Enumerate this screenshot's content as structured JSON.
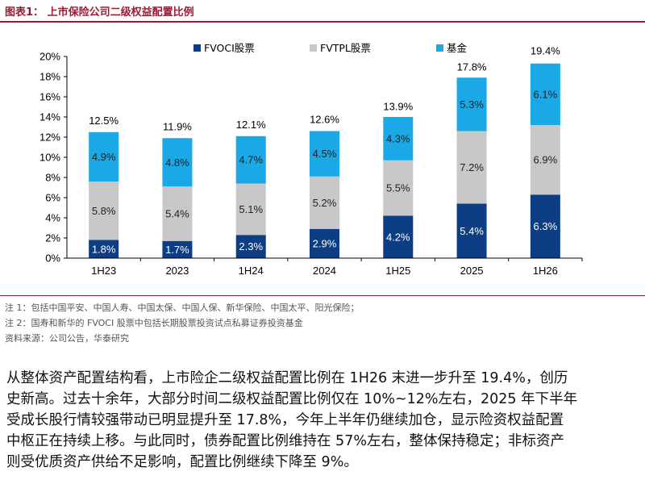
{
  "figure": {
    "title": "图表1：  上市保险公司二级权益配置比例"
  },
  "chart_data": {
    "type": "bar",
    "stacked": true,
    "categories": [
      "1H23",
      "2023",
      "1H24",
      "2024",
      "1H25",
      "2025",
      "1H26"
    ],
    "series": [
      {
        "name": "FVOCI股票",
        "color": "#0d3d82",
        "values": [
          1.8,
          1.7,
          2.3,
          2.9,
          4.2,
          5.4,
          6.3
        ],
        "labels": [
          "1.8%",
          "1.7%",
          "2.3%",
          "2.9%",
          "4.2%",
          "5.4%",
          "6.3%"
        ]
      },
      {
        "name": "FVTPL股票",
        "color": "#c8c8c8",
        "values": [
          5.8,
          5.4,
          5.1,
          5.2,
          5.5,
          7.2,
          6.9
        ],
        "labels": [
          "5.8%",
          "5.4%",
          "5.1%",
          "5.2%",
          "5.5%",
          "7.2%",
          "6.9%"
        ]
      },
      {
        "name": "基金",
        "color": "#1aa9e6",
        "values": [
          4.9,
          4.8,
          4.7,
          4.5,
          4.3,
          5.3,
          6.1
        ],
        "labels": [
          "4.9%",
          "4.8%",
          "4.7%",
          "4.5%",
          "4.3%",
          "5.3%",
          "6.1%"
        ]
      }
    ],
    "totals": [
      12.5,
      11.9,
      12.1,
      12.6,
      13.9,
      17.8,
      19.4
    ],
    "total_labels": [
      "12.5%",
      "11.9%",
      "12.1%",
      "12.6%",
      "13.9%",
      "17.8%",
      "19.4%"
    ],
    "ylim": [
      0,
      20
    ],
    "yticks": [
      0,
      2,
      4,
      6,
      8,
      10,
      12,
      14,
      16,
      18,
      20
    ],
    "ytick_labels": [
      "0%",
      "2%",
      "4%",
      "6%",
      "8%",
      "10%",
      "12%",
      "14%",
      "16%",
      "18%",
      "20%"
    ],
    "xlabel": "",
    "ylabel": "",
    "legend_position": "top-center",
    "grid": false
  },
  "notes": {
    "note1": "注 1：包括中国平安、中国人寿、中国太保、中国人保、新华保险、中国太平、阳光保险；",
    "note2": "注 2：国寿和新华的 FVOCI 股票中包括长期股票投资试点私募证券投资基金",
    "source": "资料来源：公司公告，华泰研究"
  },
  "body_lines": [
    "从整体资产配置结构看，上市险企二级权益配置比例在 1H26 末进一步升至 19.4%，创历",
    "史新高。过去十余年，大部分时间二级权益配置比例仅在 10%~12%左右，2025 年下半年",
    "受成长股行情较强带动已明显提升至 17.8%，今年上半年仍继续加仓，显示险资权益配置",
    "中枢正在持续上移。与此同时，债券配置比例维持在 57%左右，整体保持稳定；非标资产",
    "则受优质资产供给不足影响，配置比例继续下降至 9%。"
  ]
}
